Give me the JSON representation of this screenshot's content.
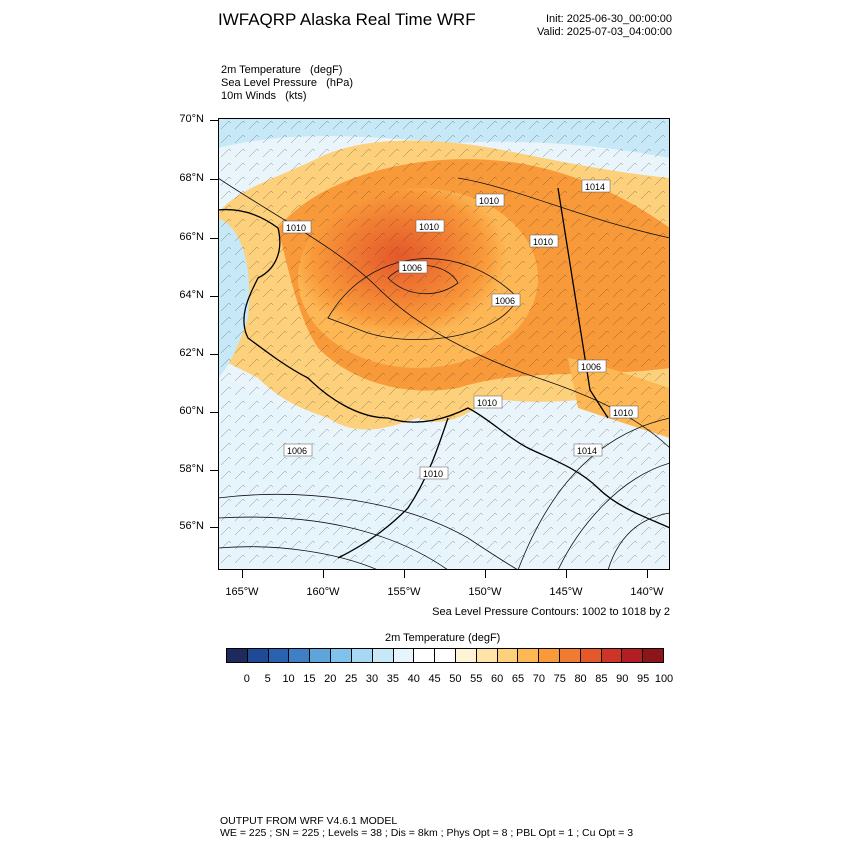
{
  "title": "IWFAQRP Alaska Real Time WRF",
  "init_time": "Init: 2025-06-30_00:00:00",
  "valid_time": "Valid: 2025-07-03_04:00:00",
  "fields": {
    "line1": "2m Temperature   (degF)",
    "line2": "Sea Level Pressure   (hPa)",
    "line3": "10m Winds   (kts)"
  },
  "latitude_labels": [
    "70°N",
    "68°N",
    "66°N",
    "64°N",
    "62°N",
    "60°N",
    "58°N",
    "56°N"
  ],
  "longitude_labels": [
    "165°W",
    "160°W",
    "155°W",
    "150°W",
    "145°W",
    "140°W"
  ],
  "contour_note": "Sea Level Pressure Contours: 1002 to 1018 by 2",
  "colorbar": {
    "title": "2m Temperature  (degF)",
    "labels": [
      "0",
      "5",
      "10",
      "15",
      "20",
      "25",
      "30",
      "35",
      "40",
      "45",
      "50",
      "55",
      "60",
      "65",
      "70",
      "75",
      "80",
      "85",
      "90",
      "95",
      "100"
    ],
    "colors": [
      "#1c2a5e",
      "#1f4a96",
      "#2a62b0",
      "#3e7fc6",
      "#5ea6da",
      "#7fc2ec",
      "#a6d8f4",
      "#c7e8f7",
      "#e6f4fb",
      "#ffffff",
      "#ffffff",
      "#fff3d6",
      "#fee4a8",
      "#fdd07c",
      "#fdb755",
      "#f99a3a",
      "#f07b32",
      "#e4582a",
      "#cf3526",
      "#b21e23",
      "#8b1519"
    ]
  },
  "pressure_labels": [
    "1010",
    "1010",
    "1010",
    "1010",
    "1006",
    "1006",
    "1014",
    "1006",
    "1010",
    "1010",
    "1006",
    "1014",
    "1010"
  ],
  "footer": {
    "line1": "OUTPUT FROM WRF V4.6.1 MODEL",
    "line2": "WE = 225 ; SN = 225 ; Levels = 38 ; Dis = 8km ; Phys Opt = 8 ; PBL Opt = 1 ; Cu Opt = 3"
  }
}
